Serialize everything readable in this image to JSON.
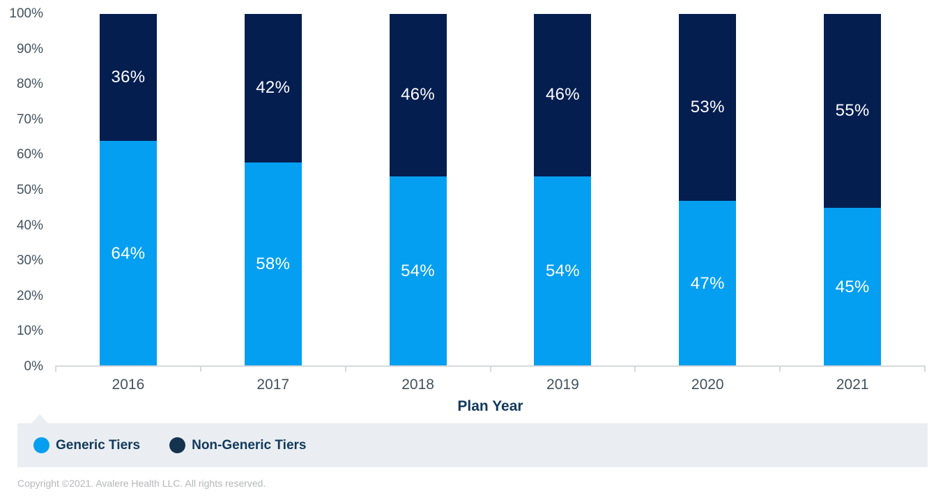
{
  "chart_data": {
    "type": "bar",
    "stacked": true,
    "orientation": "vertical",
    "categories": [
      "2016",
      "2017",
      "2018",
      "2019",
      "2020",
      "2021"
    ],
    "series": [
      {
        "name": "Generic Tiers",
        "values": [
          64,
          58,
          54,
          54,
          47,
          45
        ],
        "color": "#049FF1"
      },
      {
        "name": "Non-Generic Tiers",
        "values": [
          36,
          42,
          46,
          46,
          53,
          55
        ],
        "color": "#041E50"
      }
    ],
    "bar_labels": {
      "Generic Tiers": [
        "64%",
        "58%",
        "54%",
        "54%",
        "47%",
        "45%"
      ],
      "Non-Generic Tiers": [
        "36%",
        "42%",
        "46%",
        "46%",
        "53%",
        "55%"
      ]
    },
    "title": "",
    "xlabel": "Plan Year",
    "ylabel": "",
    "ylim": [
      0,
      100
    ],
    "ytick_labels": [
      "0%",
      "10%",
      "20%",
      "30%",
      "40%",
      "50%",
      "60%",
      "70%",
      "80%",
      "90%",
      "100%"
    ],
    "grid": false,
    "legend_position": "bottom"
  },
  "legend": {
    "items": [
      {
        "label": "Generic Tiers",
        "color": "#049FF1"
      },
      {
        "label": "Non-Generic Tiers",
        "color": "#15324F"
      }
    ]
  },
  "footer": {
    "copyright": "Copyright ©2021. Avalere Health LLC. All rights reserved."
  },
  "colors": {
    "generic_bar": "#049FF1",
    "non_generic_bar": "#041E50",
    "legend_background": "#EAEEF2",
    "axis_line": "#D6D8DA",
    "tick_label": "#42525E",
    "axis_title": "#12395C",
    "bar_value_label": "#FFFFFF",
    "copyright_text": "#B4B6B8"
  }
}
